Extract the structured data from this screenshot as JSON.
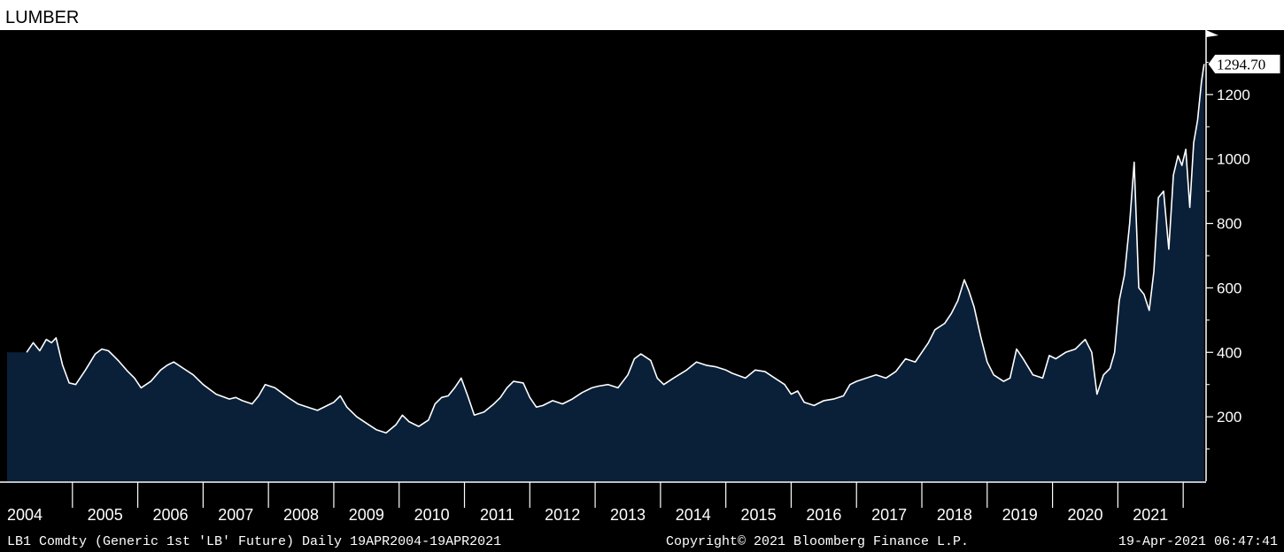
{
  "title": "LUMBER",
  "chart_data": {
    "type": "area",
    "ylim": [
      0,
      1400
    ],
    "yticks": [
      200,
      400,
      600,
      800,
      1000,
      1200
    ],
    "last_value_label": "1294.70",
    "x_ticks": [
      "2004",
      "2005",
      "2006",
      "2007",
      "2008",
      "2009",
      "2010",
      "2011",
      "2012",
      "2013",
      "2014",
      "2015",
      "2016",
      "2017",
      "2018",
      "2019",
      "2020",
      "2021"
    ],
    "series": [
      {
        "values": [
          [
            2004.3,
            400
          ],
          [
            2004.4,
            430
          ],
          [
            2004.5,
            405
          ],
          [
            2004.6,
            440
          ],
          [
            2004.68,
            430
          ],
          [
            2004.75,
            445
          ],
          [
            2004.85,
            360
          ],
          [
            2004.95,
            305
          ],
          [
            2005.05,
            300
          ],
          [
            2005.2,
            345
          ],
          [
            2005.35,
            395
          ],
          [
            2005.45,
            410
          ],
          [
            2005.55,
            405
          ],
          [
            2005.7,
            375
          ],
          [
            2005.85,
            340
          ],
          [
            2005.95,
            320
          ],
          [
            2006.05,
            290
          ],
          [
            2006.2,
            310
          ],
          [
            2006.35,
            345
          ],
          [
            2006.45,
            360
          ],
          [
            2006.55,
            370
          ],
          [
            2006.7,
            350
          ],
          [
            2006.85,
            330
          ],
          [
            2007.0,
            300
          ],
          [
            2007.2,
            270
          ],
          [
            2007.4,
            255
          ],
          [
            2007.5,
            260
          ],
          [
            2007.6,
            250
          ],
          [
            2007.75,
            240
          ],
          [
            2007.85,
            265
          ],
          [
            2007.95,
            300
          ],
          [
            2008.1,
            290
          ],
          [
            2008.3,
            260
          ],
          [
            2008.45,
            240
          ],
          [
            2008.6,
            230
          ],
          [
            2008.75,
            220
          ],
          [
            2008.9,
            235
          ],
          [
            2009.0,
            245
          ],
          [
            2009.1,
            265
          ],
          [
            2009.2,
            230
          ],
          [
            2009.35,
            200
          ],
          [
            2009.5,
            180
          ],
          [
            2009.65,
            160
          ],
          [
            2009.8,
            150
          ],
          [
            2009.95,
            175
          ],
          [
            2010.05,
            205
          ],
          [
            2010.15,
            185
          ],
          [
            2010.3,
            170
          ],
          [
            2010.45,
            190
          ],
          [
            2010.55,
            240
          ],
          [
            2010.65,
            260
          ],
          [
            2010.75,
            265
          ],
          [
            2010.85,
            290
          ],
          [
            2010.95,
            320
          ],
          [
            2011.05,
            265
          ],
          [
            2011.15,
            205
          ],
          [
            2011.3,
            215
          ],
          [
            2011.45,
            240
          ],
          [
            2011.55,
            260
          ],
          [
            2011.65,
            290
          ],
          [
            2011.75,
            310
          ],
          [
            2011.9,
            305
          ],
          [
            2012.0,
            260
          ],
          [
            2012.1,
            230
          ],
          [
            2012.2,
            235
          ],
          [
            2012.35,
            250
          ],
          [
            2012.5,
            240
          ],
          [
            2012.65,
            255
          ],
          [
            2012.8,
            275
          ],
          [
            2012.95,
            290
          ],
          [
            2013.05,
            295
          ],
          [
            2013.2,
            300
          ],
          [
            2013.35,
            290
          ],
          [
            2013.5,
            330
          ],
          [
            2013.6,
            380
          ],
          [
            2013.7,
            395
          ],
          [
            2013.85,
            375
          ],
          [
            2013.95,
            320
          ],
          [
            2014.05,
            300
          ],
          [
            2014.2,
            320
          ],
          [
            2014.4,
            345
          ],
          [
            2014.55,
            370
          ],
          [
            2014.7,
            360
          ],
          [
            2014.85,
            355
          ],
          [
            2015.0,
            345
          ],
          [
            2015.1,
            335
          ],
          [
            2015.3,
            320
          ],
          [
            2015.45,
            345
          ],
          [
            2015.6,
            340
          ],
          [
            2015.75,
            320
          ],
          [
            2015.9,
            300
          ],
          [
            2016.0,
            270
          ],
          [
            2016.1,
            280
          ],
          [
            2016.2,
            245
          ],
          [
            2016.35,
            235
          ],
          [
            2016.5,
            250
          ],
          [
            2016.65,
            255
          ],
          [
            2016.8,
            265
          ],
          [
            2016.9,
            300
          ],
          [
            2017.0,
            310
          ],
          [
            2017.15,
            320
          ],
          [
            2017.3,
            330
          ],
          [
            2017.45,
            320
          ],
          [
            2017.6,
            340
          ],
          [
            2017.75,
            380
          ],
          [
            2017.9,
            370
          ],
          [
            2018.0,
            400
          ],
          [
            2018.1,
            430
          ],
          [
            2018.2,
            470
          ],
          [
            2018.35,
            490
          ],
          [
            2018.45,
            520
          ],
          [
            2018.55,
            560
          ],
          [
            2018.65,
            625
          ],
          [
            2018.72,
            590
          ],
          [
            2018.8,
            540
          ],
          [
            2018.9,
            450
          ],
          [
            2019.0,
            370
          ],
          [
            2019.1,
            330
          ],
          [
            2019.25,
            310
          ],
          [
            2019.35,
            320
          ],
          [
            2019.45,
            410
          ],
          [
            2019.55,
            380
          ],
          [
            2019.7,
            330
          ],
          [
            2019.85,
            320
          ],
          [
            2019.95,
            390
          ],
          [
            2020.05,
            380
          ],
          [
            2020.2,
            400
          ],
          [
            2020.35,
            410
          ],
          [
            2020.5,
            440
          ],
          [
            2020.6,
            400
          ],
          [
            2020.68,
            270
          ],
          [
            2020.78,
            330
          ],
          [
            2020.88,
            350
          ],
          [
            2020.95,
            400
          ],
          [
            2021.02,
            560
          ],
          [
            2021.1,
            640
          ],
          [
            2021.18,
            800
          ],
          [
            2021.25,
            990
          ],
          [
            2021.32,
            600
          ],
          [
            2021.4,
            580
          ],
          [
            2021.48,
            530
          ],
          [
            2021.55,
            650
          ],
          [
            2021.62,
            880
          ],
          [
            2021.7,
            900
          ],
          [
            2021.78,
            720
          ],
          [
            2021.85,
            950
          ],
          [
            2021.92,
            1010
          ],
          [
            2021.98,
            980
          ],
          [
            2022.04,
            1030
          ],
          [
            2022.1,
            850
          ],
          [
            2022.16,
            1050
          ],
          [
            2022.22,
            1120
          ],
          [
            2022.28,
            1240
          ],
          [
            2022.32,
            1294.7
          ]
        ]
      }
    ]
  },
  "footer": {
    "left": "LB1 Comdty (Generic 1st 'LB' Future)  Daily 19APR2004-19APR2021",
    "center": "Copyright© 2021 Bloomberg Finance L.P.",
    "right": "19-Apr-2021 06:47:41"
  },
  "colors": {
    "background": "#000000",
    "area_fill": "#0a1f38",
    "line": "#ffffff",
    "axis_text": "#ffffff"
  }
}
